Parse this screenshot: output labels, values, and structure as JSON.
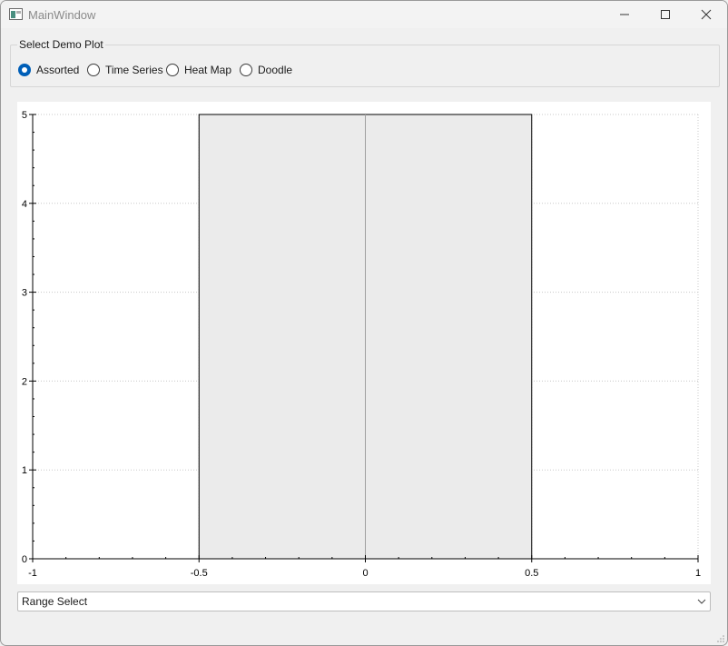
{
  "window": {
    "title": "MainWindow"
  },
  "demo_select": {
    "group_title": "Select Demo Plot",
    "options": [
      {
        "label": "Assorted",
        "checked": true
      },
      {
        "label": "Time Series",
        "checked": false
      },
      {
        "label": "Heat Map",
        "checked": false
      },
      {
        "label": "Doodle",
        "checked": false
      }
    ]
  },
  "range_select": {
    "value": "Range Select"
  },
  "chart_data": {
    "type": "bar",
    "title": "",
    "xlabel": "",
    "ylabel": "",
    "x_ticks": [
      "-1",
      "-0.5",
      "0",
      "0.5",
      "1"
    ],
    "y_ticks": [
      "0",
      "1",
      "2",
      "3",
      "4",
      "5"
    ],
    "xlim": [
      -1,
      1
    ],
    "ylim": [
      0,
      5
    ],
    "grid": true,
    "bars": [
      {
        "x_start": -0.5,
        "x_end": 0.5,
        "value": 5,
        "color": "#ebebeb"
      }
    ],
    "center_line_x": 0
  }
}
